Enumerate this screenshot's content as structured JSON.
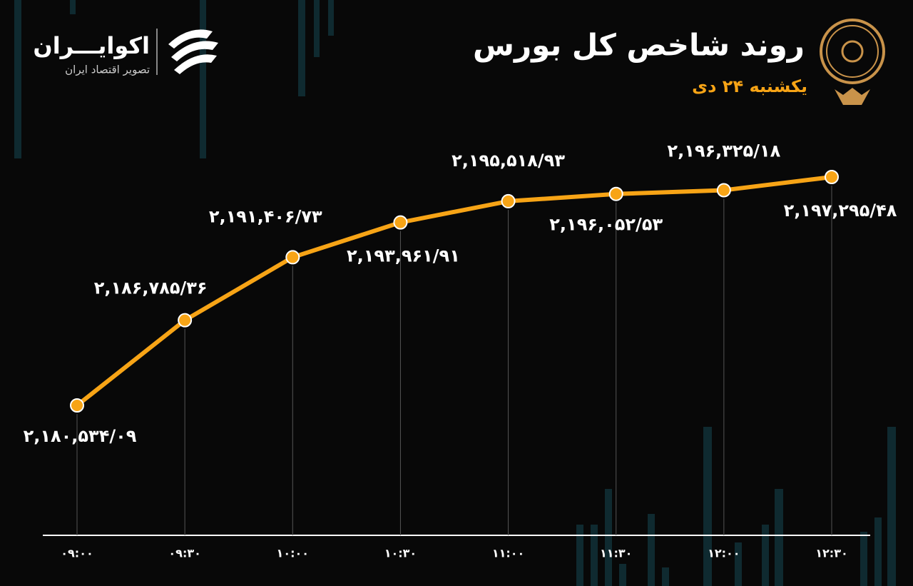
{
  "brand": {
    "name": "اکوایـــران",
    "tagline": "تصویر اقتصاد ایران"
  },
  "chart_data": {
    "type": "line",
    "title": "روند شاخص کل بورس",
    "subtitle": "یکشنبه ۲۴ دی",
    "categories": [
      "۰۹:۰۰",
      "۰۹:۳۰",
      "۱۰:۰۰",
      "۱۰:۳۰",
      "۱۱:۰۰",
      "۱۱:۳۰",
      "۱۲:۰۰",
      "۱۲:۳۰"
    ],
    "series": [
      {
        "name": "شاخص کل",
        "color": "#f7a416",
        "values": [
          2180534.09,
          2186785.36,
          2191406.73,
          2193961.91,
          2195518.93,
          2196052.53,
          2196325.18,
          2197295.48
        ],
        "value_labels": [
          "۲,۱۸۰,۵۳۴/۰۹",
          "۲,۱۸۶,۷۸۵/۳۶",
          "۲,۱۹۱,۴۰۶/۷۳",
          "۲,۱۹۳,۹۶۱/۹۱",
          "۲,۱۹۵,۵۱۸/۹۳",
          "۲,۱۹۶,۰۵۲/۵۳",
          "۲,۱۹۶,۳۲۵/۱۸",
          "۲,۱۹۷,۲۹۵/۴۸"
        ]
      }
    ]
  }
}
